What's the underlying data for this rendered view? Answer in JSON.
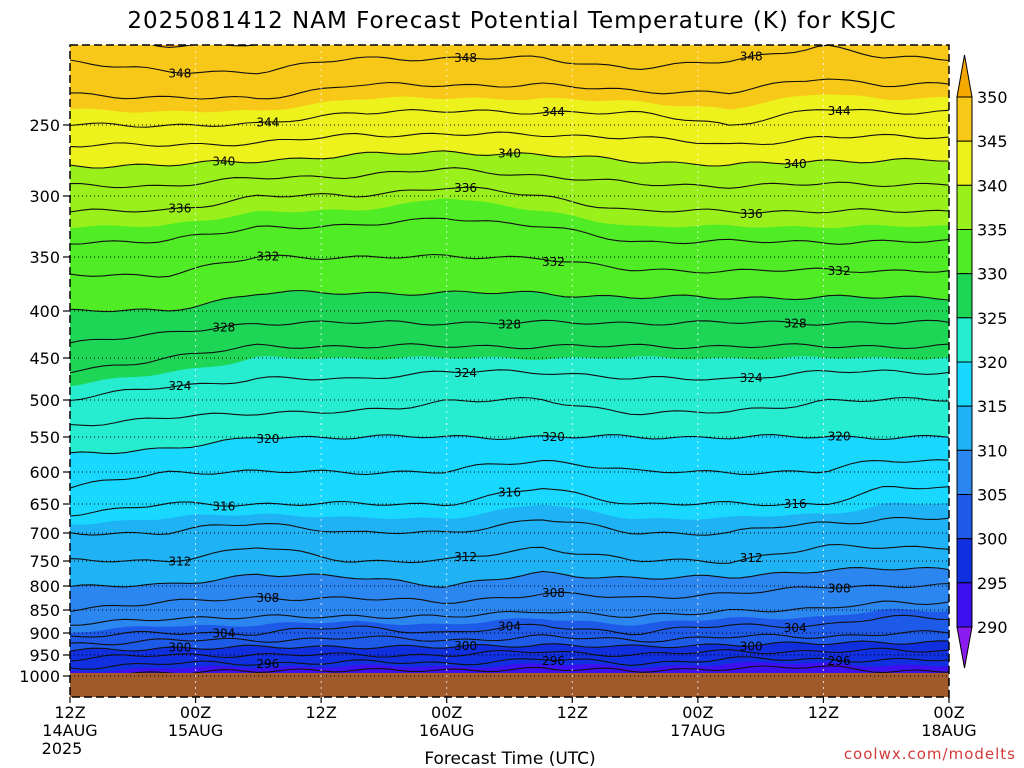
{
  "title": "2025081412 NAM Forecast Potential Temperature (K) for KSJC",
  "xlabel": "Forecast Time (UTC)",
  "credit": "coolwx.com/modelts",
  "year_label": "2025",
  "chart_data": {
    "type": "heatmap",
    "title": "2025081412 NAM Forecast Potential Temperature (K) for KSJC",
    "xlabel": "Forecast Time (UTC)",
    "ylabel": "",
    "x_ticks": [
      {
        "hour": 0,
        "top": "12Z",
        "bottom": "14AUG"
      },
      {
        "hour": 12,
        "top": "00Z",
        "bottom": "15AUG"
      },
      {
        "hour": 24,
        "top": "12Z",
        "bottom": ""
      },
      {
        "hour": 36,
        "top": "00Z",
        "bottom": "16AUG"
      },
      {
        "hour": 48,
        "top": "12Z",
        "bottom": ""
      },
      {
        "hour": 60,
        "top": "00Z",
        "bottom": "17AUG"
      },
      {
        "hour": 72,
        "top": "12Z",
        "bottom": ""
      },
      {
        "hour": 84,
        "top": "00Z",
        "bottom": "18AUG"
      }
    ],
    "y_ticks": [
      250,
      300,
      350,
      400,
      450,
      500,
      550,
      600,
      650,
      700,
      750,
      800,
      850,
      900,
      950,
      1000
    ],
    "ylim": [
      200,
      1013
    ],
    "xlim": [
      0,
      84
    ],
    "colorbar": {
      "levels": [
        290,
        295,
        300,
        305,
        310,
        315,
        320,
        325,
        330,
        335,
        340,
        345,
        350
      ],
      "colors": [
        "#8a1cf2",
        "#3c10f0",
        "#1030e0",
        "#1e5ae8",
        "#2b86f0",
        "#1fb2f5",
        "#18d8ff",
        "#26ecd0",
        "#1ed656",
        "#50ec26",
        "#9af01a",
        "#eef21c",
        "#f8c818",
        "#f4a800"
      ]
    },
    "ground_color": "#a05a2c",
    "ground_pressure": 1000,
    "contour_interval": 2,
    "contour_labels_shown": [
      296,
      300,
      304,
      308,
      312,
      316,
      320,
      324,
      328,
      332,
      336,
      340,
      344,
      348
    ],
    "theta_profiles": [
      {
        "pressure": 200,
        "values": [
          349,
          350,
          350,
          349,
          349,
          349,
          350,
          349,
          348,
          349,
          349
        ]
      },
      {
        "pressure": 250,
        "values": [
          344,
          344,
          344,
          343,
          343,
          343,
          343,
          344,
          343,
          343,
          343
        ]
      },
      {
        "pressure": 300,
        "values": [
          337,
          337,
          336,
          336,
          335,
          336,
          337,
          337,
          337,
          337,
          337
        ]
      },
      {
        "pressure": 350,
        "values": [
          333,
          333,
          332,
          332,
          332,
          332,
          333,
          333,
          333,
          333,
          333
        ]
      },
      {
        "pressure": 400,
        "values": [
          330,
          330,
          329,
          329,
          329,
          329,
          329,
          329,
          329,
          329,
          329
        ]
      },
      {
        "pressure": 450,
        "values": [
          327,
          326,
          325,
          325,
          325,
          325,
          325,
          325,
          325,
          325,
          325
        ]
      },
      {
        "pressure": 500,
        "values": [
          324,
          323,
          323,
          323,
          322,
          322,
          323,
          323,
          322,
          322,
          322
        ]
      },
      {
        "pressure": 550,
        "values": [
          321,
          321,
          320,
          320,
          320,
          320,
          320,
          320,
          320,
          320,
          320
        ]
      },
      {
        "pressure": 600,
        "values": [
          319,
          318,
          318,
          318,
          318,
          317,
          318,
          318,
          318,
          317,
          317
        ]
      },
      {
        "pressure": 650,
        "values": [
          317,
          316,
          316,
          316,
          316,
          315,
          316,
          316,
          316,
          315,
          315
        ]
      },
      {
        "pressure": 700,
        "values": [
          314,
          314,
          313,
          314,
          314,
          313,
          314,
          314,
          313,
          313,
          313
        ]
      },
      {
        "pressure": 750,
        "values": [
          312,
          312,
          311,
          312,
          312,
          311,
          312,
          312,
          311,
          311,
          311
        ]
      },
      {
        "pressure": 800,
        "values": [
          310,
          310,
          309,
          309,
          310,
          309,
          309,
          309,
          308,
          308,
          308
        ]
      },
      {
        "pressure": 850,
        "values": [
          308,
          307,
          307,
          307,
          307,
          306,
          307,
          306,
          306,
          305,
          305
        ]
      },
      {
        "pressure": 900,
        "values": [
          305,
          304,
          304,
          303,
          304,
          303,
          304,
          303,
          303,
          302,
          302
        ]
      },
      {
        "pressure": 950,
        "values": [
          299,
          298,
          298,
          298,
          298,
          297,
          298,
          297,
          297,
          297,
          297
        ]
      },
      {
        "pressure": 1000,
        "values": [
          294,
          293,
          293,
          292,
          293,
          292,
          293,
          292,
          292,
          293,
          293
        ]
      }
    ],
    "profile_hours": [
      0,
      9,
      18,
      27,
      36,
      45,
      54,
      63,
      72,
      78,
      84
    ],
    "grid": true,
    "legend": "colorbar-right"
  }
}
